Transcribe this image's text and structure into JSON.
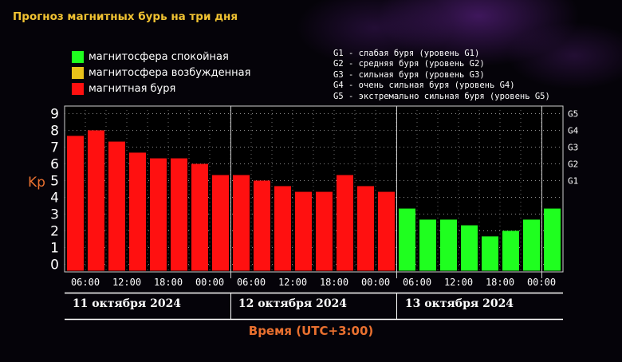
{
  "header": {
    "title": "Прогноз магнитных бурь на три дня"
  },
  "legend": {
    "items": [
      {
        "label": "магнитосфера спокойная",
        "color": "#1fff1f"
      },
      {
        "label": "магнитосфера возбужденная",
        "color": "#e8c21a"
      },
      {
        "label": "магнитная буря",
        "color": "#ff1010"
      }
    ],
    "g_scale": [
      "G1 - слабая буря (уровень G1)",
      "G2 - средняя буря (уровень G2)",
      "G3 - сильная буря (уровень G3)",
      "G4 - очень сильная буря (уровень G4)",
      "G5 - экстремально сильная буря (уровень G5)"
    ]
  },
  "days": [
    "11 октября 2024",
    "12 октября 2024",
    "13 октября 2024"
  ],
  "footer": {
    "time_label": "Время (UTC+3:00)"
  },
  "chart_data": {
    "type": "bar",
    "ylabel": "Kp",
    "xlabel": "Время (UTC+3:00)",
    "ylim": [
      0,
      9
    ],
    "yticks": [
      "0",
      "1",
      "2",
      "3",
      "4",
      "5",
      "6",
      "7",
      "8",
      "9"
    ],
    "right_ticks": [
      {
        "label": "G1",
        "value": 5
      },
      {
        "label": "G2",
        "value": 6
      },
      {
        "label": "G3",
        "value": 7
      },
      {
        "label": "G4",
        "value": 8
      },
      {
        "label": "G5",
        "value": 9
      }
    ],
    "xticks": [
      "06:00",
      "12:00",
      "18:00",
      "00:00",
      "06:00",
      "12:00",
      "18:00",
      "00:00",
      "06:00",
      "12:00",
      "18:00",
      "00:00"
    ],
    "values": [
      7.67,
      8.0,
      7.33,
      6.67,
      6.33,
      6.33,
      6.0,
      5.33,
      5.33,
      5.0,
      4.67,
      4.33,
      4.33,
      5.33,
      4.67,
      4.33,
      3.33,
      2.67,
      2.67,
      2.33,
      1.67,
      2.0,
      2.67,
      3.33
    ],
    "storm_color": "#ff1010",
    "quiet_color": "#1fff1f",
    "grid": true,
    "legend_position": "top-left"
  }
}
